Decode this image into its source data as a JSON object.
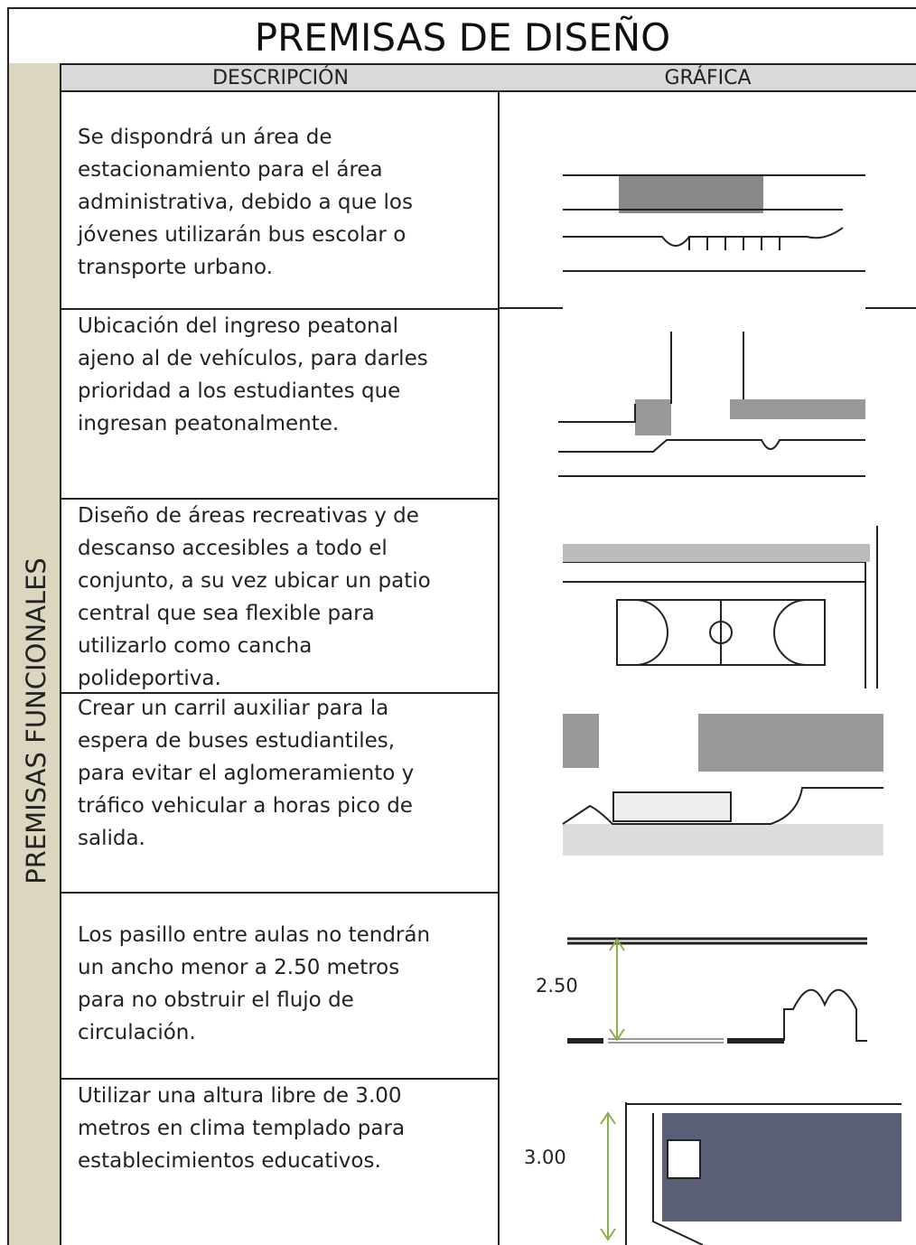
{
  "header": {
    "title": "PREMISAS DE DISEÑO"
  },
  "table": {
    "side_label": "PREMISAS FUNCIONALES",
    "columns": [
      "DESCRIPCIÓN",
      "GRÁFICA"
    ],
    "rows": [
      {
        "description": "Se dispondrá un área de\nestacionamiento  para el área\nadministrativa, debido a que los\njóvenes utilizarán bus escolar o\ntransporte urbano."
      },
      {
        "description": "Ubicación del ingreso peatonal\najeno al de vehículos, para darles\nprioridad  a los estudiantes que\ningresan peatonalmente."
      },
      {
        "description": "Diseño de  áreas recreativas y de\ndescanso accesibles a todo el\nconjunto, a su vez ubicar un patio\ncentral que sea flexible para\nutilizarlo como cancha\npolideportiva."
      },
      {
        "description": "Crear un carril auxiliar para la\nespera de buses estudiantiles,\npara evitar el aglomeramiento y\ntráfico vehicular a horas pico de\nsalida."
      },
      {
        "description": "Los pasillo entre aulas no tendrán\nun ancho menor a 2.50 metros\npara no obstruir el flujo de\ncirculación.",
        "graphic_label": "2.50"
      },
      {
        "description": "Utilizar una altura libre de 3.00\nmetros en clima templado para\nestablecimientos educativos.",
        "graphic_label": "3.00"
      }
    ]
  }
}
